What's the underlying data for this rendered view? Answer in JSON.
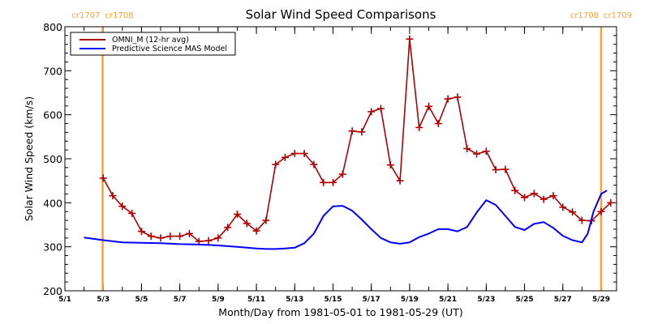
{
  "chart_data": {
    "type": "line",
    "title": "Solar Wind Speed Comparisons",
    "xlabel": "Month/Day from 1981-05-01 to 1981-05-29 (UT)",
    "ylabel": "Solar Wind Speed (km/s)",
    "xlim": [
      0,
      28.1
    ],
    "ylim": [
      200,
      800
    ],
    "x_unit": "days since 1981-05-01",
    "yticks": [
      200,
      300,
      400,
      500,
      600,
      700,
      800
    ],
    "y_minor_step": 20,
    "xticks": [
      {
        "x": 0,
        "label": "5/1"
      },
      {
        "x": 2,
        "label": "5/3"
      },
      {
        "x": 4,
        "label": "5/5"
      },
      {
        "x": 6,
        "label": "5/7"
      },
      {
        "x": 8,
        "label": "5/9"
      },
      {
        "x": 10,
        "label": "5/11"
      },
      {
        "x": 12,
        "label": "5/13"
      },
      {
        "x": 14,
        "label": "5/15"
      },
      {
        "x": 16,
        "label": "5/17"
      },
      {
        "x": 18,
        "label": "5/19"
      },
      {
        "x": 20,
        "label": "5/21"
      },
      {
        "x": 22,
        "label": "5/23"
      },
      {
        "x": 24,
        "label": "5/25"
      },
      {
        "x": 26,
        "label": "5/27"
      },
      {
        "x": 28,
        "label": "5/29"
      }
    ],
    "x_minor_step": 1,
    "grid": false,
    "legend": {
      "placement": "top-left",
      "entries": [
        {
          "name": "OMNI_M (12-hr avg)",
          "color": "#b00000"
        },
        {
          "name": "Predictive Science MAS Model",
          "color": "#0000ff"
        }
      ]
    },
    "carrington_markers": [
      {
        "x": 1.97,
        "label_left": "cr1707",
        "label_right": "cr1708"
      },
      {
        "x": 28.0,
        "label_left": "cr1708",
        "label_right": "cr1709"
      }
    ],
    "marker_color": "#ffa030",
    "series": [
      {
        "name": "OMNI_M (12-hr avg)",
        "color": "#b00000",
        "marker": "plus",
        "x": [
          2.0,
          2.5,
          3.0,
          3.5,
          4.0,
          4.5,
          5.0,
          5.5,
          6.0,
          6.5,
          7.0,
          7.5,
          8.0,
          8.5,
          9.0,
          9.5,
          10.0,
          10.5,
          11.0,
          11.5,
          12.0,
          12.5,
          13.0,
          13.5,
          14.0,
          14.5,
          15.0,
          15.5,
          16.0,
          16.5,
          17.0,
          17.5,
          18.0,
          18.5,
          19.0,
          19.5,
          20.0,
          20.5,
          21.0,
          21.5,
          22.0,
          22.5,
          23.0,
          23.5,
          24.0,
          24.5,
          25.0,
          25.5,
          26.0,
          26.5,
          27.0,
          27.5,
          28.0,
          28.5
        ],
        "values": [
          456,
          416,
          392,
          376,
          335,
          324,
          320,
          324,
          324,
          330,
          312,
          314,
          320,
          344,
          374,
          353,
          336,
          360,
          487,
          503,
          512,
          512,
          487,
          446,
          446,
          465,
          563,
          561,
          607,
          614,
          486,
          450,
          772,
          571,
          619,
          580,
          636,
          640,
          523,
          511,
          517,
          475,
          476,
          428,
          412,
          421,
          408,
          416,
          390,
          379,
          360,
          359,
          380,
          400
        ]
      },
      {
        "name": "Predictive Science MAS Model",
        "color": "#0000ff",
        "marker": "none",
        "x": [
          1.0,
          2.0,
          3.0,
          4.0,
          5.0,
          6.0,
          7.0,
          8.0,
          9.0,
          10.0,
          10.5,
          11.0,
          11.5,
          12.0,
          12.5,
          13.0,
          13.5,
          14.0,
          14.5,
          15.0,
          15.5,
          16.0,
          16.5,
          17.0,
          17.5,
          18.0,
          18.5,
          19.0,
          19.5,
          20.0,
          20.5,
          21.0,
          21.5,
          22.0,
          22.5,
          23.0,
          23.5,
          24.0,
          24.5,
          25.0,
          25.5,
          26.0,
          26.5,
          27.0,
          27.3,
          27.6,
          28.0,
          28.3
        ],
        "values": [
          321,
          315,
          310,
          309,
          308,
          306,
          305,
          303,
          300,
          296,
          295,
          295,
          296,
          298,
          308,
          330,
          370,
          392,
          393,
          382,
          362,
          340,
          320,
          310,
          307,
          310,
          322,
          330,
          340,
          340,
          335,
          345,
          378,
          406,
          395,
          370,
          345,
          338,
          352,
          356,
          343,
          325,
          315,
          310,
          330,
          380,
          420,
          428
        ]
      }
    ]
  }
}
